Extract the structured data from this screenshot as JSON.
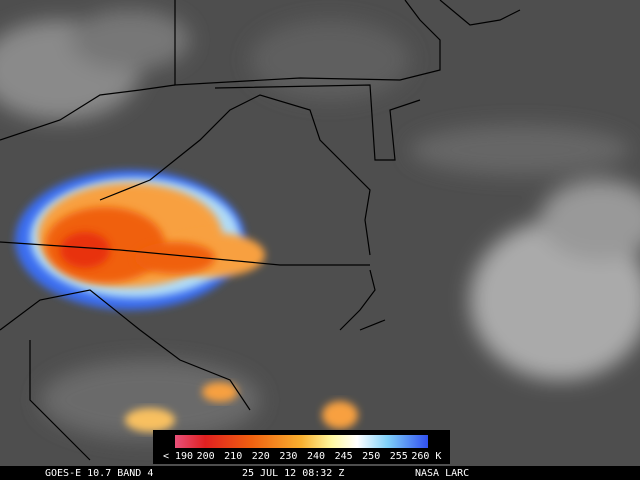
{
  "colorbar": {
    "labels": [
      "< 190",
      "200",
      "210",
      "220",
      "230",
      "240",
      "245",
      "250",
      "255",
      "260 K"
    ]
  },
  "footer": {
    "satellite": "GOES-E 10.7 BAND 4",
    "timestamp": "25 JUL 12 08:32 Z",
    "source": "NASA LARC"
  }
}
